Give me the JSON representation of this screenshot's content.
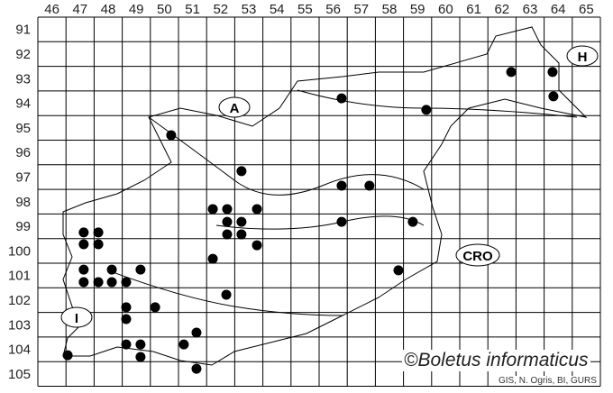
{
  "map": {
    "column_labels": [
      "46",
      "47",
      "48",
      "49",
      "50",
      "51",
      "52",
      "53",
      "54",
      "55",
      "56",
      "57",
      "58",
      "59",
      "60",
      "61",
      "62",
      "63",
      "64",
      "65"
    ],
    "row_labels": [
      "91",
      "92",
      "93",
      "94",
      "95",
      "96",
      "97",
      "98",
      "99",
      "100",
      "101",
      "102",
      "103",
      "104",
      "105"
    ],
    "country_labels": {
      "austria": "A",
      "hungary": "H",
      "croatia": "CRO",
      "italy": "I"
    },
    "copyright": "©Boletus informaticus",
    "source": "GIS, N. Ogris, BI, GURS",
    "colors": {
      "dot": "#000000",
      "grid": "#000000",
      "background": "#ffffff"
    },
    "records": [
      [
        62.83,
        93.23
      ],
      [
        64.3,
        93.23
      ],
      [
        64.33,
        94.22
      ],
      [
        56.8,
        94.3
      ],
      [
        59.81,
        94.77
      ],
      [
        50.74,
        95.8
      ],
      [
        53.24,
        97.26
      ],
      [
        56.8,
        97.85
      ],
      [
        57.79,
        97.85
      ],
      [
        52.22,
        98.8
      ],
      [
        52.73,
        98.8
      ],
      [
        53.79,
        98.8
      ],
      [
        52.73,
        99.32
      ],
      [
        53.24,
        99.32
      ],
      [
        52.73,
        99.83
      ],
      [
        53.24,
        99.83
      ],
      [
        53.79,
        100.27
      ],
      [
        47.63,
        99.75
      ],
      [
        48.15,
        99.75
      ],
      [
        47.63,
        100.23
      ],
      [
        48.15,
        100.23
      ],
      [
        52.22,
        100.82
      ],
      [
        56.8,
        99.32
      ],
      [
        59.33,
        99.32
      ],
      [
        58.82,
        101.29
      ],
      [
        47.63,
        101.26
      ],
      [
        48.63,
        101.26
      ],
      [
        49.65,
        101.26
      ],
      [
        47.63,
        101.77
      ],
      [
        48.15,
        101.77
      ],
      [
        48.63,
        101.77
      ],
      [
        49.14,
        101.77
      ],
      [
        49.14,
        102.79
      ],
      [
        50.17,
        102.79
      ],
      [
        52.7,
        102.28
      ],
      [
        49.14,
        103.27
      ],
      [
        51.64,
        103.82
      ],
      [
        49.14,
        104.3
      ],
      [
        49.65,
        104.3
      ],
      [
        51.19,
        104.3
      ],
      [
        47.06,
        104.74
      ],
      [
        49.65,
        104.81
      ],
      [
        51.64,
        105.29
      ]
    ]
  }
}
